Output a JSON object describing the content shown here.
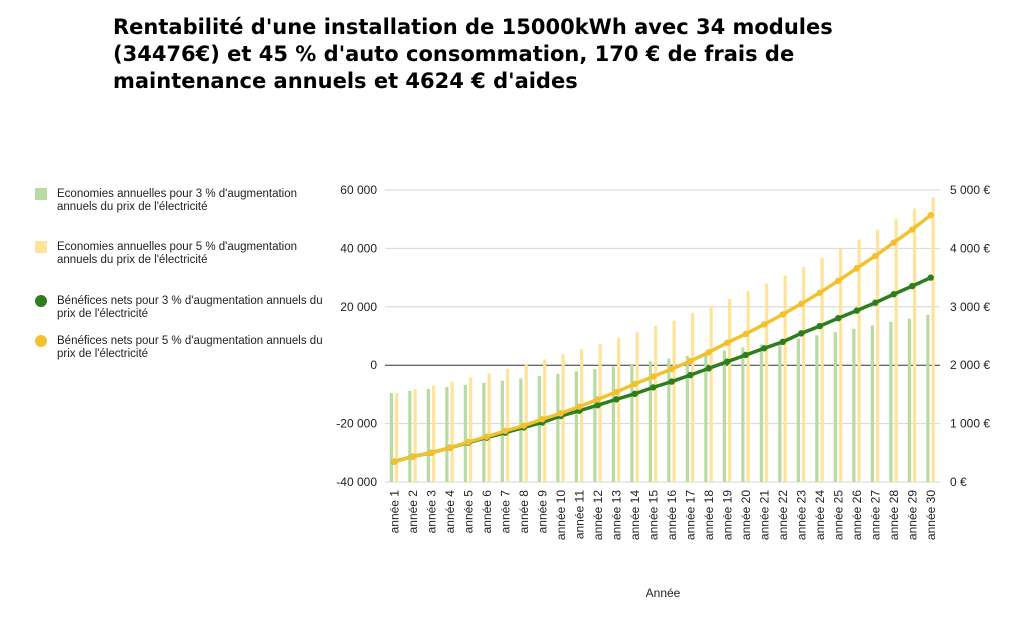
{
  "chart_data": {
    "type": "bar+line",
    "title": "Rentabilité d'une installation de 15000kWh avec 34 modules (34476€) et 45 % d'auto consommation, 170 € de frais de maintenance annuels et 4624 € d'aides",
    "xlabel": "Année",
    "ylabel_left": "",
    "ylabel_right": "",
    "categories": [
      "année 1",
      "année 2",
      "année 3",
      "année 4",
      "année 5",
      "année 6",
      "année 7",
      "année 8",
      "année 9",
      "année 10",
      "année 11",
      "année 12",
      "année 13",
      "année 14",
      "année 15",
      "année 16",
      "année 17",
      "année 18",
      "année 19",
      "année 20",
      "année 21",
      "année 22",
      "année 23",
      "année 24",
      "année 25",
      "année 26",
      "année 27",
      "année 28",
      "année 29",
      "année 30"
    ],
    "ylim_left": [
      -40000,
      60000
    ],
    "yticks_left": [
      "60 000",
      "40 000",
      "20 000",
      "0",
      "-20 000",
      "-40 000"
    ],
    "ylim_right": [
      0,
      5000
    ],
    "yticks_right": [
      "5 000 €",
      "4 000 €",
      "3 000 €",
      "2 000 €",
      "1 000 €",
      "0 €"
    ],
    "grid": true,
    "legend_position": "left",
    "series": [
      {
        "name": "Economies annuelles pour 3 % d'augmentation annuels du prix de l'électricité",
        "kind": "bar",
        "axis": "right",
        "color": "#b7dba0",
        "values": [
          1524,
          1558,
          1592,
          1627,
          1662,
          1699,
          1736,
          1774,
          1813,
          1853,
          1894,
          1935,
          1978,
          2021,
          2066,
          2111,
          2157,
          2205,
          2253,
          2303,
          2353,
          2405,
          2458,
          2512,
          2567,
          2623,
          2681,
          2740,
          2800,
          2862
        ]
      },
      {
        "name": "Economies annuelles pour 5 % d'augmentation annuels du prix de l'électricité",
        "kind": "bar",
        "axis": "right",
        "color": "#fde49a",
        "values": [
          1524,
          1586,
          1651,
          1719,
          1789,
          1862,
          1939,
          2018,
          2100,
          2186,
          2276,
          2369,
          2466,
          2567,
          2672,
          2760,
          2895,
          3013,
          3136,
          3265,
          3398,
          3537,
          3682,
          3833,
          3989,
          4152,
          4322,
          4499,
          4683,
          4875
        ]
      },
      {
        "name": "Bénéfices nets pour 3 % d'augmentation annuels du prix de l'électricité",
        "kind": "line",
        "axis": "left",
        "color": "#2e7d1e",
        "values": [
          -33000,
          -31300,
          -30000,
          -28300,
          -26500,
          -24800,
          -23100,
          -21300,
          -19600,
          -17400,
          -15600,
          -13700,
          -11700,
          -9800,
          -7600,
          -5600,
          -3400,
          -1100,
          1200,
          3500,
          5800,
          8000,
          10900,
          13400,
          16100,
          18700,
          21400,
          24300,
          27100,
          30000
        ]
      },
      {
        "name": "Bénéfices nets pour 5 % d'augmentation annuels du prix de l'électricité",
        "kind": "line",
        "axis": "left",
        "color": "#f2c12e",
        "values": [
          -33000,
          -31300,
          -30000,
          -28300,
          -26300,
          -24500,
          -22500,
          -20700,
          -18500,
          -16500,
          -14200,
          -11700,
          -9200,
          -6400,
          -3900,
          -1300,
          1400,
          4400,
          7700,
          10700,
          14000,
          17400,
          21000,
          24800,
          28900,
          33200,
          37400,
          42000,
          46500,
          51400
        ]
      }
    ]
  }
}
